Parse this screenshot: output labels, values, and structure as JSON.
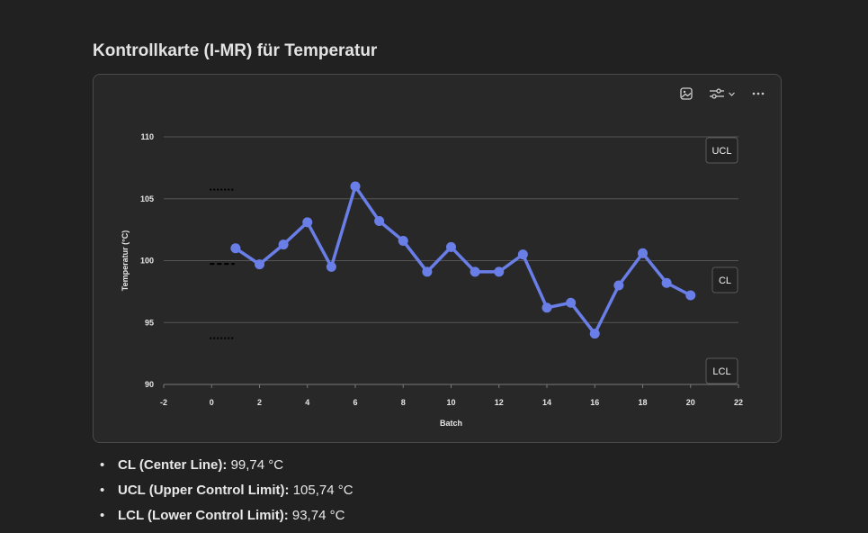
{
  "page": {
    "title": "Kontrollkarte (I-MR) für Temperatur"
  },
  "toolbar": {
    "icons": [
      "image-icon",
      "settings-sliders-icon",
      "chevron-down-icon",
      "more-horizontal-icon"
    ],
    "more_label": "⋯"
  },
  "chart_data": {
    "type": "line",
    "title": "",
    "xlabel": "Batch",
    "ylabel": "Temperatur (°C)",
    "xlim": [
      -2,
      22
    ],
    "ylim": [
      90,
      110
    ],
    "xticks": [
      -2,
      0,
      2,
      4,
      6,
      8,
      10,
      12,
      14,
      16,
      18,
      20,
      22
    ],
    "yticks": [
      90,
      95,
      100,
      105,
      110
    ],
    "grid": "horizontal",
    "series": [
      {
        "values": [
          101.0,
          99.7,
          101.3,
          103.1,
          99.5,
          106.0,
          103.2,
          101.6,
          99.1,
          101.1,
          99.1,
          99.1,
          100.5,
          96.2,
          96.6,
          94.1,
          98.0,
          100.6,
          98.2,
          97.2
        ],
        "x": [
          1,
          2,
          3,
          4,
          5,
          6,
          7,
          8,
          9,
          10,
          11,
          12,
          13,
          14,
          15,
          16,
          17,
          18,
          19,
          20
        ],
        "color": "#6a7ee8"
      }
    ],
    "reference_lines": [
      {
        "label": "UCL",
        "value": 105.74,
        "style": "dotted"
      },
      {
        "label": "CL",
        "value": 99.74,
        "style": "dashed"
      },
      {
        "label": "LCL",
        "value": 93.74,
        "style": "dotted"
      }
    ],
    "reference_line_x_range": [
      0,
      1
    ]
  },
  "summary": [
    {
      "term": "CL (Center Line):",
      "value": "99,74 °C"
    },
    {
      "term": "UCL (Upper Control Limit):",
      "value": "105,74 °C"
    },
    {
      "term": "LCL (Lower Control Limit):",
      "value": "93,74 °C"
    }
  ]
}
